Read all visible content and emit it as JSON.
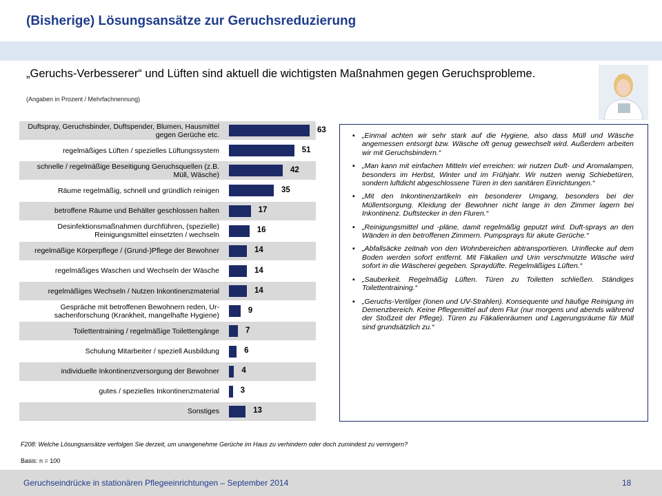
{
  "title": "(Bisherige) Lösungsansätze zur Geruchsreduzierung",
  "headline": "„Geruchs-Verbesserer“ und Lüften sind aktuell die wichtigsten Maßnahmen gegen Geruchsprobleme.",
  "note": "(Angaben in Prozent / Mehrfachnennung)",
  "chart_data": {
    "type": "hbar",
    "categories": [
      "Duftspray, Geruchsbinder, Duftspender, Blumen, Hausmittel gegen Gerüche etc.",
      "regelmäßiges Lüften / spezielles Lüftungssystem",
      "schnelle / regelmäßige Beseitigung Geruchsquellen (z.B. Müll, Wäsche)",
      "Räume regelmäßig, schnell und gründlich reinigen",
      "betroffene Räume und Behälter geschlossen halten",
      "Desinfektionsmaßnahmen durchführen, (spezielle) Reinigungsmittel einsetzten / wechseln",
      "regelmäßige Körperpflege / (Grund-)Pflege der Bewohner",
      "regelmäßiges Waschen und Wechseln der Wäsche",
      "regelmäßiges Wechseln / Nutzen Inkontinenzmaterial",
      "Gespräche mit betroffenen Bewohnern reden, Ur-sachenforschung (Krankheit, mangelhafte Hygiene)",
      "Toilettentraining / regelmäßige Toilettengänge",
      "Schulung Mitarbeiter / speziell Ausbildung",
      "individuelle Inkontinenzversorgung der Bewohner",
      "gutes / spezielles Inkontinenzmaterial",
      "Sonstiges"
    ],
    "values": [
      63,
      51,
      42,
      35,
      17,
      16,
      14,
      14,
      14,
      9,
      7,
      6,
      4,
      3,
      13
    ],
    "color": "#1c2a66",
    "xlim": [
      0,
      70
    ]
  },
  "quotes": [
    "„Einmal achten wir sehr stark auf die Hygiene, also dass Müll und Wäsche angemessen entsorgt bzw. Wäsche oft genug gewechselt wird. Außerdem arbeiten wir mit Geruchsbindern.“",
    "„Man kann mit einfachen Mitteln viel erreichen: wir nutzen Duft- und Aromalampen, besonders im Herbst, Winter und im Frühjahr. Wir nutzen wenig Schiebetüren, sondern luftdicht abgeschlossene Türen in den sanitären Einrichtungen.“",
    "„Mit den Inkontinenzartikeln ein besonderer Umgang, besonders bei der Müllentsorgung. Kleidung der Bewohner nicht lange in den Zimmer lagern bei Inkontinenz. Duftstecker in den Fluren.“",
    "„Reinigungsmittel und -pläne, damit regelmäßig geputzt wird. Duft-sprays an den Wänden in den betroffenen Zimmern. Pumpsprays für akute Gerüche.“",
    "„Abfallsäcke zeitnah von den Wohnbereichen abtransportieren. Urinflecke auf dem Boden werden sofort entfernt. Mit Fäkalien und Urin verschmutzte Wäsche wird sofort in die Wäscherei gegeben. Spraydüfte. Regelmäßiges Lüften.“",
    "„Sauberkeit. Regelmäßig Lüften. Türen zu Toiletten schließen. Ständiges Toilettentraining.“",
    "„Geruchs-Vertilger (Ionen und UV-Strahlen). Konsequente und häufige Reinigung im Demenzbereich. Keine Pflegemittel auf dem Flur (nur morgens und abends während der Stoßzeit der Pflege). Türen zu Fäkalienräumen und Lagerungsräume für Müll sind grundsätzlich zu.“"
  ],
  "question": "F208: Welche Lösungsansätze verfolgen Sie derzeit, um unangenehme Gerüche im Haus zu verhindern oder doch zumindest zu verringern?",
  "basis": "Basis: n = 100",
  "footer": "Geruchseindrücke in stationären Pflegeeinrichtungen – September 2014",
  "page_number": "18"
}
